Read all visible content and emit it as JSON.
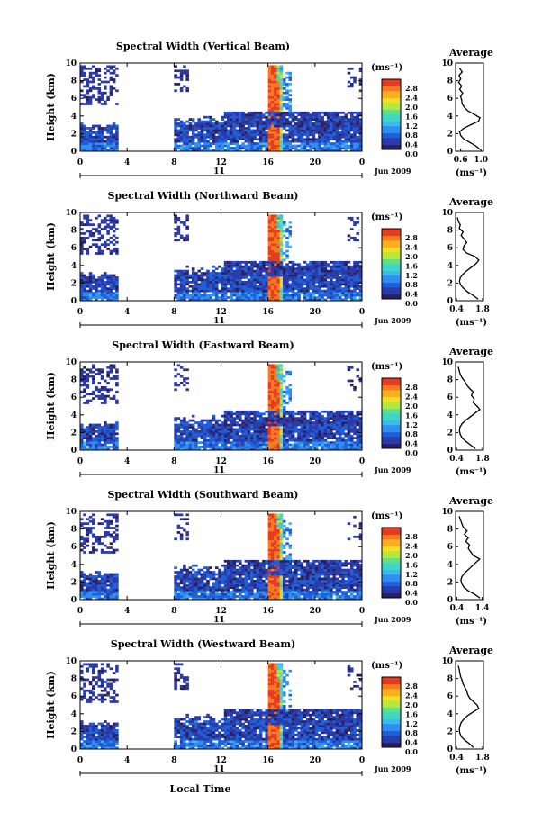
{
  "chart_data": [
    {
      "type": "heatmap",
      "title": "Spectral Width (Vertical Beam)",
      "xlabel": "",
      "ylabel": "Height (km)",
      "x_ticks": [
        "0",
        "4",
        "8",
        "12",
        "16",
        "20",
        "0"
      ],
      "y_ticks": [
        "0",
        "2",
        "4",
        "6",
        "8",
        "10"
      ],
      "day": "11",
      "date": "Jun 2009",
      "colorbar": {
        "unit": "(ms⁻¹)",
        "ticks": [
          "0.0",
          "0.4",
          "0.8",
          "1.2",
          "1.6",
          "2.0",
          "2.4",
          "2.8"
        ],
        "range": [
          0.0,
          3.0
        ]
      },
      "average": {
        "title": "Average",
        "xlabel": "(ms⁻¹)",
        "x_ticks": [
          "0.6",
          "1.0"
        ],
        "xlim": [
          0.5,
          1.05
        ],
        "ylim": [
          0,
          10
        ],
        "height_km": [
          0.2,
          0.6,
          1.0,
          1.4,
          1.8,
          2.2,
          2.6,
          3.0,
          3.4,
          3.8,
          4.2,
          4.6,
          5.0,
          5.4,
          5.8,
          6.2,
          6.6,
          7.0,
          7.4,
          7.8,
          8.2,
          8.6,
          9.0,
          9.4
        ],
        "value": [
          0.98,
          0.9,
          0.78,
          0.66,
          0.6,
          0.58,
          0.66,
          0.8,
          0.95,
          0.98,
          0.86,
          0.74,
          0.67,
          0.63,
          0.62,
          0.6,
          0.64,
          0.58,
          0.62,
          0.56,
          0.6,
          0.57,
          0.63,
          0.58
        ]
      }
    },
    {
      "type": "heatmap",
      "title": "Spectral Width (Northward Beam)",
      "xlabel": "",
      "ylabel": "Height (km)",
      "x_ticks": [
        "0",
        "4",
        "8",
        "12",
        "16",
        "20",
        "0"
      ],
      "y_ticks": [
        "0",
        "2",
        "4",
        "6",
        "8",
        "10"
      ],
      "day": "11",
      "date": "Jun 2009",
      "colorbar": {
        "unit": "(ms⁻¹)",
        "ticks": [
          "0.0",
          "0.4",
          "0.8",
          "1.2",
          "1.6",
          "2.0",
          "2.4",
          "2.8"
        ],
        "range": [
          0.0,
          3.0
        ]
      },
      "average": {
        "title": "Average",
        "xlabel": "(ms⁻¹)",
        "x_ticks": [
          "0.4",
          "1.8"
        ],
        "xlim": [
          0.35,
          1.85
        ],
        "ylim": [
          0,
          10
        ],
        "height_km": [
          0.2,
          0.6,
          1.0,
          1.4,
          1.8,
          2.2,
          2.6,
          3.0,
          3.4,
          3.8,
          4.2,
          4.6,
          5.0,
          5.4,
          5.8,
          6.2,
          6.6,
          7.0,
          7.4,
          7.8,
          8.2,
          8.6,
          9.0,
          9.4
        ],
        "value": [
          1.55,
          1.3,
          1.0,
          0.78,
          0.62,
          0.56,
          0.6,
          0.75,
          0.95,
          1.2,
          1.45,
          1.6,
          1.4,
          0.95,
          0.75,
          0.8,
          0.95,
          0.8,
          0.65,
          0.75,
          0.55,
          0.6,
          0.5,
          0.45
        ]
      }
    },
    {
      "type": "heatmap",
      "title": "Spectral Width (Eastward Beam)",
      "xlabel": "",
      "ylabel": "Height (km)",
      "x_ticks": [
        "0",
        "4",
        "8",
        "12",
        "16",
        "20",
        "0"
      ],
      "y_ticks": [
        "0",
        "2",
        "4",
        "6",
        "8",
        "10"
      ],
      "day": "11",
      "date": "Jun 2009",
      "colorbar": {
        "unit": "(ms⁻¹)",
        "ticks": [
          "0.0",
          "0.4",
          "0.8",
          "1.2",
          "1.6",
          "2.0",
          "2.4",
          "2.8"
        ],
        "range": [
          0.0,
          3.0
        ]
      },
      "average": {
        "title": "Average",
        "xlabel": "(ms⁻¹)",
        "x_ticks": [
          "0.4",
          "1.8"
        ],
        "xlim": [
          0.35,
          1.85
        ],
        "ylim": [
          0,
          10
        ],
        "height_km": [
          0.2,
          0.6,
          1.0,
          1.4,
          1.8,
          2.2,
          2.6,
          3.0,
          3.4,
          3.8,
          4.2,
          4.6,
          5.0,
          5.4,
          5.8,
          6.2,
          6.6,
          7.0,
          7.4,
          7.8,
          8.2,
          8.6,
          9.0,
          9.4
        ],
        "value": [
          1.4,
          1.15,
          0.9,
          0.7,
          0.6,
          0.56,
          0.58,
          0.7,
          0.9,
          1.15,
          1.4,
          1.65,
          1.5,
          1.3,
          1.35,
          1.2,
          1.3,
          1.1,
          0.95,
          0.85,
          0.7,
          0.6,
          0.55,
          0.5
        ]
      }
    },
    {
      "type": "heatmap",
      "title": "Spectral Width (Southward Beam)",
      "xlabel": "",
      "ylabel": "Height (km)",
      "x_ticks": [
        "0",
        "4",
        "8",
        "12",
        "16",
        "20",
        "0"
      ],
      "y_ticks": [
        "0",
        "2",
        "4",
        "6",
        "8",
        "10"
      ],
      "day": "11",
      "date": "Jun 2009",
      "colorbar": {
        "unit": "(ms⁻¹)",
        "ticks": [
          "0.0",
          "0.4",
          "0.8",
          "1.2",
          "1.6",
          "2.0",
          "2.4",
          "2.8"
        ],
        "range": [
          0.0,
          3.0
        ]
      },
      "average": {
        "title": "Average",
        "xlabel": "(ms⁻¹)",
        "x_ticks": [
          "0.4",
          "1.4"
        ],
        "xlim": [
          0.35,
          1.45
        ],
        "ylim": [
          0,
          10
        ],
        "height_km": [
          0.2,
          0.6,
          1.0,
          1.4,
          1.8,
          2.2,
          2.6,
          3.0,
          3.4,
          3.8,
          4.2,
          4.6,
          5.0,
          5.4,
          5.8,
          6.2,
          6.6,
          7.0,
          7.4,
          7.8,
          8.2,
          8.6,
          9.0,
          9.4
        ],
        "value": [
          1.3,
          1.1,
          0.85,
          0.68,
          0.6,
          0.56,
          0.6,
          0.7,
          0.85,
          1.0,
          1.15,
          1.3,
          1.05,
          0.95,
          0.85,
          0.9,
          0.75,
          0.85,
          0.7,
          0.8,
          0.65,
          0.6,
          0.55,
          0.5
        ]
      }
    },
    {
      "type": "heatmap",
      "title": "Spectral Width (Westward Beam)",
      "xlabel": "Local Time",
      "ylabel": "Height (km)",
      "x_ticks": [
        "0",
        "4",
        "8",
        "12",
        "16",
        "20",
        "0"
      ],
      "y_ticks": [
        "0",
        "2",
        "4",
        "6",
        "8",
        "10"
      ],
      "day": "11",
      "date": "Jun 2009",
      "colorbar": {
        "unit": "(ms⁻¹)",
        "ticks": [
          "0.0",
          "0.4",
          "0.8",
          "1.2",
          "1.6",
          "2.0",
          "2.4",
          "2.8"
        ],
        "range": [
          0.0,
          3.0
        ]
      },
      "average": {
        "title": "Average",
        "xlabel": "(ms⁻¹)",
        "x_ticks": [
          "0.4",
          "1.8"
        ],
        "xlim": [
          0.35,
          1.85
        ],
        "ylim": [
          0,
          10
        ],
        "height_km": [
          0.2,
          0.6,
          1.0,
          1.4,
          1.8,
          2.2,
          2.6,
          3.0,
          3.4,
          3.8,
          4.2,
          4.6,
          5.0,
          5.4,
          5.8,
          6.2,
          6.6,
          7.0,
          7.4,
          7.8,
          8.2,
          8.6,
          9.0,
          9.4
        ],
        "value": [
          1.3,
          1.1,
          0.85,
          0.66,
          0.58,
          0.55,
          0.58,
          0.65,
          0.8,
          1.0,
          1.3,
          1.6,
          1.5,
          1.3,
          1.1,
          1.0,
          0.95,
          0.85,
          0.75,
          0.7,
          0.62,
          0.58,
          0.55,
          0.5
        ]
      }
    }
  ]
}
